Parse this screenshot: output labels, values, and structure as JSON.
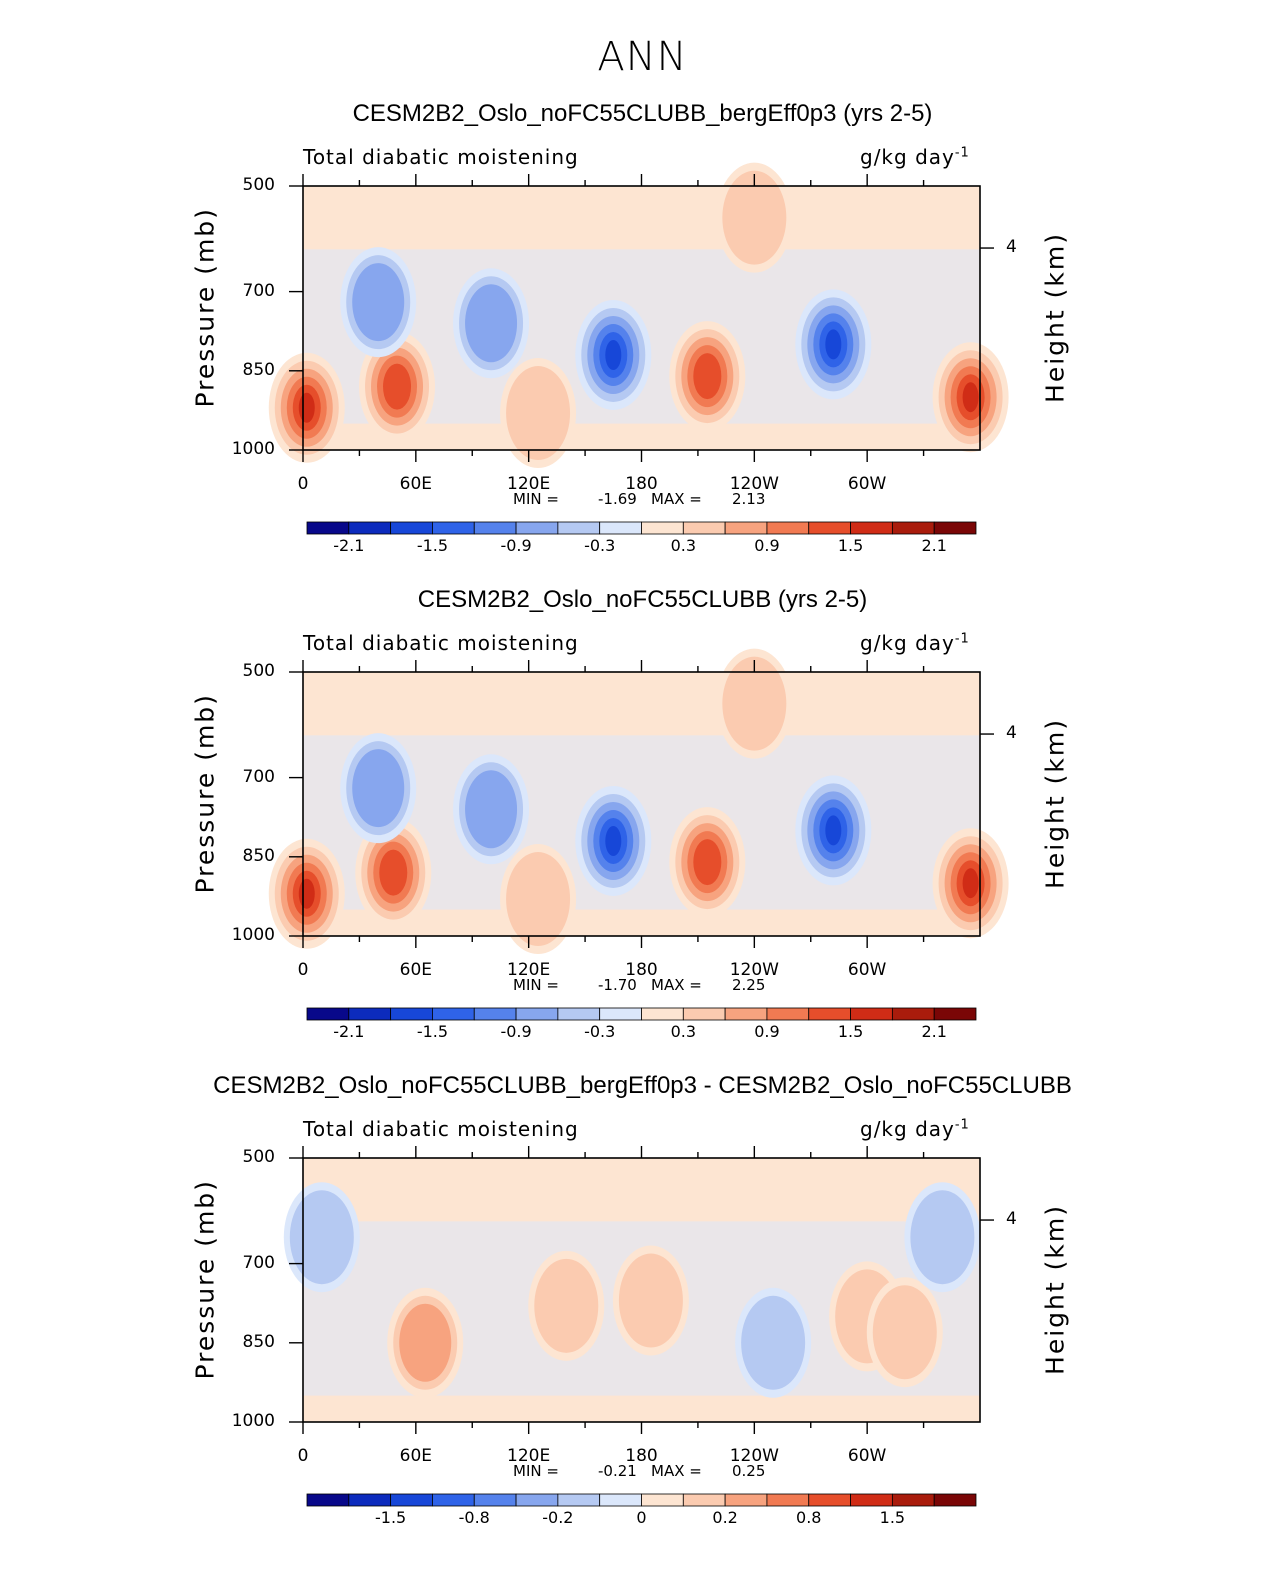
{
  "main_title": "ANN",
  "chart_data": [
    {
      "type": "heatmap",
      "title": "CESM2B2_Oslo_noFC55CLUBB_bergEff0p3 (yrs 2-5)",
      "left_string": "Total diabatic moistening",
      "right_string": "g/kg day",
      "right_string_exp": "-1",
      "ylabel": "Pressure (mb)",
      "ylabel_right": "Height (km)",
      "x_ticks": [
        "0",
        "60E",
        "120E",
        "180",
        "120W",
        "60W"
      ],
      "y_ticks": [
        "500",
        "700",
        "850",
        "1000"
      ],
      "right_ticks": [
        "4"
      ],
      "min_text": "MIN =",
      "min_value": "-1.69",
      "max_text": "MAX =",
      "max_value": "2.13",
      "colorbar_labels": [
        "-2.1",
        "-1.5",
        "-0.9",
        "-0.3",
        "0.3",
        "0.9",
        "1.5",
        "2.1"
      ],
      "colorbar_colors": [
        "#08088a",
        "#0c2bbd",
        "#1747d8",
        "#2f63e8",
        "#5582ec",
        "#87a6ee",
        "#b5c9f2",
        "#dbe7fb",
        "#fde5d2",
        "#fbcbb0",
        "#f7a37f",
        "#f17a52",
        "#e64e2b",
        "#d02c16",
        "#a91c0c",
        "#7a0606"
      ],
      "features": [
        {
          "lon": 2,
          "lev": 920,
          "level": 5
        },
        {
          "lon": 50,
          "lev": 880,
          "level": 4
        },
        {
          "lon": 125,
          "lev": 930,
          "level": 1
        },
        {
          "lon": 165,
          "lev": 820,
          "level": -5
        },
        {
          "lon": 215,
          "lev": 860,
          "level": 4
        },
        {
          "lon": 282,
          "lev": 800,
          "level": -5
        },
        {
          "lon": 355,
          "lev": 900,
          "level": 5
        },
        {
          "lon": 100,
          "lev": 760,
          "level": -2
        },
        {
          "lon": 40,
          "lev": 720,
          "level": -2
        },
        {
          "lon": 240,
          "lev": 560,
          "level": 1
        }
      ]
    },
    {
      "type": "heatmap",
      "title": "CESM2B2_Oslo_noFC55CLUBB (yrs 2-5)",
      "left_string": "Total diabatic moistening",
      "right_string": "g/kg day",
      "right_string_exp": "-1",
      "ylabel": "Pressure (mb)",
      "ylabel_right": "Height (km)",
      "x_ticks": [
        "0",
        "60E",
        "120E",
        "180",
        "120W",
        "60W"
      ],
      "y_ticks": [
        "500",
        "700",
        "850",
        "1000"
      ],
      "right_ticks": [
        "4"
      ],
      "min_text": "MIN =",
      "min_value": "-1.70",
      "max_text": "MAX =",
      "max_value": "2.25",
      "colorbar_labels": [
        "-2.1",
        "-1.5",
        "-0.9",
        "-0.3",
        "0.3",
        "0.9",
        "1.5",
        "2.1"
      ],
      "colorbar_colors": [
        "#08088a",
        "#0c2bbd",
        "#1747d8",
        "#2f63e8",
        "#5582ec",
        "#87a6ee",
        "#b5c9f2",
        "#dbe7fb",
        "#fde5d2",
        "#fbcbb0",
        "#f7a37f",
        "#f17a52",
        "#e64e2b",
        "#d02c16",
        "#a91c0c",
        "#7a0606"
      ],
      "features": [
        {
          "lon": 2,
          "lev": 920,
          "level": 5
        },
        {
          "lon": 48,
          "lev": 880,
          "level": 4
        },
        {
          "lon": 125,
          "lev": 930,
          "level": 1
        },
        {
          "lon": 165,
          "lev": 820,
          "level": -5
        },
        {
          "lon": 215,
          "lev": 860,
          "level": 4
        },
        {
          "lon": 282,
          "lev": 800,
          "level": -5
        },
        {
          "lon": 355,
          "lev": 900,
          "level": 5
        },
        {
          "lon": 100,
          "lev": 760,
          "level": -2
        },
        {
          "lon": 40,
          "lev": 720,
          "level": -2
        },
        {
          "lon": 240,
          "lev": 560,
          "level": 1
        }
      ]
    },
    {
      "type": "heatmap",
      "title": "CESM2B2_Oslo_noFC55CLUBB_bergEff0p3 - CESM2B2_Oslo_noFC55CLUBB",
      "left_string": "Total diabatic moistening",
      "right_string": "g/kg day",
      "right_string_exp": "-1",
      "ylabel": "Pressure (mb)",
      "ylabel_right": "Height (km)",
      "x_ticks": [
        "0",
        "60E",
        "120E",
        "180",
        "120W",
        "60W"
      ],
      "y_ticks": [
        "500",
        "700",
        "850",
        "1000"
      ],
      "right_ticks": [
        "4"
      ],
      "min_text": "MIN =",
      "min_value": "-0.21",
      "max_text": "MAX =",
      "max_value": "0.25",
      "colorbar_labels": [
        "-1.5",
        "-0.8",
        "-0.2",
        "0",
        "0.2",
        "0.8",
        "1.5"
      ],
      "colorbar_colors": [
        "#08088a",
        "#0c2bbd",
        "#1747d8",
        "#2f63e8",
        "#5582ec",
        "#87a6ee",
        "#b5c9f2",
        "#dbe7fb",
        "#fde5d2",
        "#fbcbb0",
        "#f7a37f",
        "#f17a52",
        "#e64e2b",
        "#d02c16",
        "#a91c0c",
        "#7a0606"
      ],
      "features": [
        {
          "lon": 65,
          "lev": 850,
          "level": 2
        },
        {
          "lon": 140,
          "lev": 780,
          "level": 1
        },
        {
          "lon": 185,
          "lev": 770,
          "level": 1
        },
        {
          "lon": 300,
          "lev": 800,
          "level": 1
        },
        {
          "lon": 320,
          "lev": 830,
          "level": 1
        },
        {
          "lon": 250,
          "lev": 850,
          "level": -1
        },
        {
          "lon": 10,
          "lev": 650,
          "level": -1
        },
        {
          "lon": 340,
          "lev": 650,
          "level": -1
        }
      ]
    }
  ]
}
